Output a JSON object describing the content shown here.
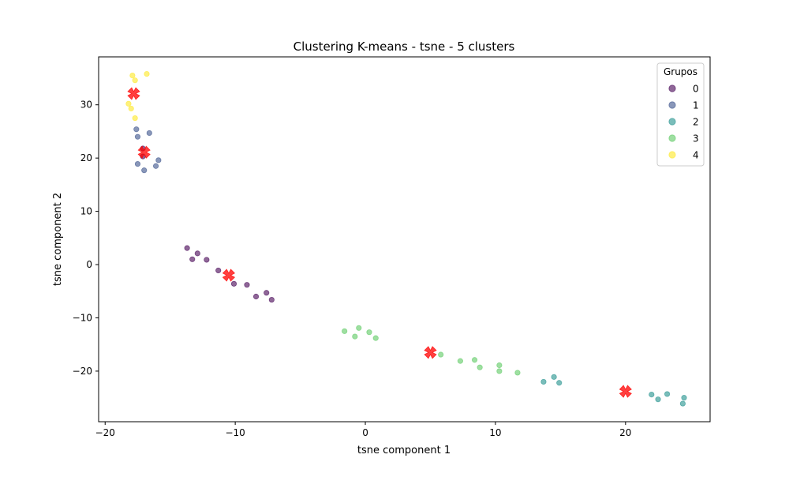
{
  "chart_data": {
    "type": "scatter",
    "title": "Clustering K-means - tsne - 5 clusters",
    "xlabel": "tsne component 1",
    "ylabel": "tsne component 2",
    "xlim": [
      -20.5,
      26.5
    ],
    "ylim": [
      -29.5,
      39
    ],
    "xticks": [
      -20,
      -10,
      0,
      10,
      20
    ],
    "yticks": [
      -20,
      -10,
      0,
      10,
      20,
      30
    ],
    "grid": false,
    "legend": {
      "title": "Grupos",
      "placement": "top-right"
    },
    "series": [
      {
        "name": "0",
        "color": "#440154",
        "points": [
          [
            -17.1,
            21.8
          ],
          [
            -17.1,
            20.3
          ],
          [
            -13.7,
            3.1
          ],
          [
            -13.3,
            1.0
          ],
          [
            -12.9,
            2.1
          ],
          [
            -12.2,
            0.9
          ],
          [
            -11.3,
            -1.1
          ],
          [
            -10.1,
            -3.6
          ],
          [
            -9.1,
            -3.8
          ],
          [
            -8.4,
            -6.0
          ],
          [
            -7.6,
            -5.3
          ],
          [
            -7.2,
            -6.6
          ]
        ]
      },
      {
        "name": "1",
        "color": "#3b528b",
        "points": [
          [
            -17.6,
            25.4
          ],
          [
            -17.5,
            24.0
          ],
          [
            -16.6,
            24.7
          ],
          [
            -17.5,
            18.9
          ],
          [
            -17.0,
            17.7
          ],
          [
            -16.1,
            18.5
          ],
          [
            -15.9,
            19.6
          ]
        ]
      },
      {
        "name": "2",
        "color": "#21918c",
        "points": [
          [
            13.7,
            -22.0
          ],
          [
            14.5,
            -21.1
          ],
          [
            14.9,
            -22.2
          ],
          [
            22.0,
            -24.4
          ],
          [
            22.5,
            -25.3
          ],
          [
            23.2,
            -24.3
          ],
          [
            24.4,
            -26.1
          ],
          [
            24.5,
            -25.0
          ]
        ]
      },
      {
        "name": "3",
        "color": "#5ec962",
        "points": [
          [
            -1.6,
            -12.5
          ],
          [
            -0.8,
            -13.5
          ],
          [
            -0.5,
            -11.9
          ],
          [
            0.3,
            -12.7
          ],
          [
            0.8,
            -13.8
          ],
          [
            5.8,
            -16.9
          ],
          [
            7.3,
            -18.1
          ],
          [
            8.4,
            -17.9
          ],
          [
            8.8,
            -19.3
          ],
          [
            10.3,
            -18.9
          ],
          [
            10.3,
            -20.0
          ],
          [
            11.7,
            -20.3
          ]
        ]
      },
      {
        "name": "4",
        "color": "#fde725",
        "points": [
          [
            -17.9,
            35.5
          ],
          [
            -17.7,
            34.6
          ],
          [
            -16.8,
            35.8
          ],
          [
            -18.2,
            30.2
          ],
          [
            -18.0,
            29.3
          ],
          [
            -17.7,
            27.5
          ]
        ]
      }
    ],
    "centroids": {
      "color": "#ff0000",
      "marker": "X",
      "points": [
        [
          -17.8,
          32.1
        ],
        [
          -17.0,
          21.1
        ],
        [
          -10.5,
          -2.0
        ],
        [
          5.0,
          -16.5
        ],
        [
          20.0,
          -23.8
        ]
      ]
    }
  }
}
